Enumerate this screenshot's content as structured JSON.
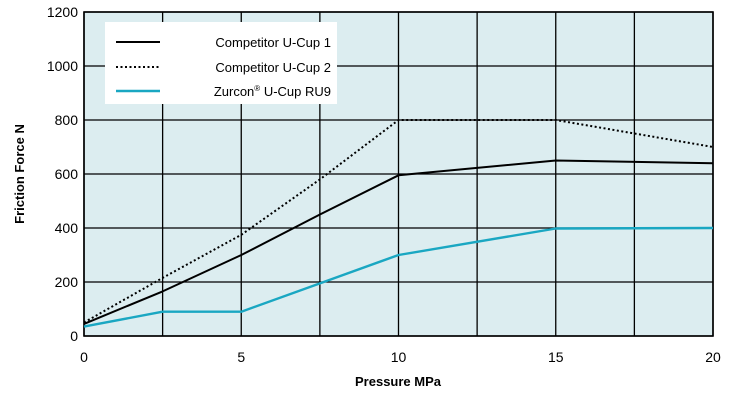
{
  "chart_data": {
    "type": "line",
    "xlabel": "Pressure MPa",
    "ylabel": "Friction Force N",
    "xlim": [
      0,
      20
    ],
    "ylim": [
      0,
      1200
    ],
    "x_ticks": [
      0,
      5,
      10,
      15,
      20
    ],
    "y_ticks": [
      0,
      200,
      400,
      600,
      800,
      1000,
      1200
    ],
    "x_grid": [
      0,
      2.5,
      5,
      7.5,
      10,
      12.5,
      15,
      17.5,
      20
    ],
    "y_grid": [
      0,
      200,
      400,
      600,
      800,
      1000,
      1200
    ],
    "grid": true,
    "background_color": "#dcedf0",
    "legend_position": "top-left",
    "series": [
      {
        "name": "Competitor U-Cup 1",
        "style": "solid",
        "color": "#000000",
        "x": [
          0,
          2.5,
          5,
          7.5,
          10,
          15,
          20
        ],
        "y": [
          45,
          165,
          300,
          450,
          595,
          650,
          640
        ]
      },
      {
        "name": "Competitor U-Cup 2",
        "style": "dotted",
        "color": "#000000",
        "x": [
          0,
          2.5,
          5,
          7.5,
          10,
          15,
          20
        ],
        "y": [
          50,
          215,
          375,
          580,
          800,
          800,
          700
        ]
      },
      {
        "name_main": "Zurcon",
        "name_sup": "®",
        "name_rest": " U-Cup RU9",
        "style": "solid",
        "color": "#1aa7c2",
        "x": [
          0,
          2.5,
          5,
          7.5,
          10,
          15,
          20
        ],
        "y": [
          35,
          90,
          90,
          195,
          300,
          398,
          400
        ]
      }
    ]
  }
}
